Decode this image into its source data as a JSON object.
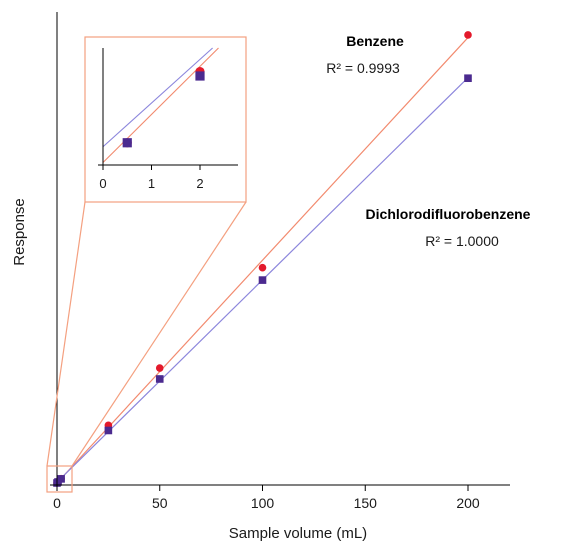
{
  "chart_data": {
    "type": "scatter",
    "xlabel": "Sample volume (mL)",
    "ylabel": "Response",
    "xlim": [
      0,
      220
    ],
    "x_ticks": [
      0,
      50,
      100,
      150,
      200
    ],
    "grid": false,
    "series": [
      {
        "name": "Benzene",
        "annotation": "R² = 0.9993",
        "color": "#e3192b",
        "line_color": "#f28a6e",
        "marker": "circle",
        "x": [
          0,
          0.5,
          2,
          25,
          50,
          100,
          200
        ],
        "y": [
          0,
          0.5,
          2.1,
          28,
          55.8,
          104.5,
          217.5
        ]
      },
      {
        "name": "Dichlorodifluorobenzene",
        "annotation": "R² = 1.0000",
        "color": "#4b2a8f",
        "line_color": "#8c86dc",
        "marker": "square",
        "x": [
          0,
          0.5,
          2,
          25,
          50,
          100,
          200
        ],
        "y": [
          0,
          0.5,
          2,
          25.5,
          50.5,
          98.5,
          196.5
        ]
      }
    ],
    "inset": {
      "xlim": [
        0,
        3
      ],
      "x_ticks": [
        0,
        1,
        2
      ],
      "zoom_region": {
        "x": [
          0,
          2.5
        ],
        "y": [
          0,
          2.8
        ]
      }
    }
  }
}
